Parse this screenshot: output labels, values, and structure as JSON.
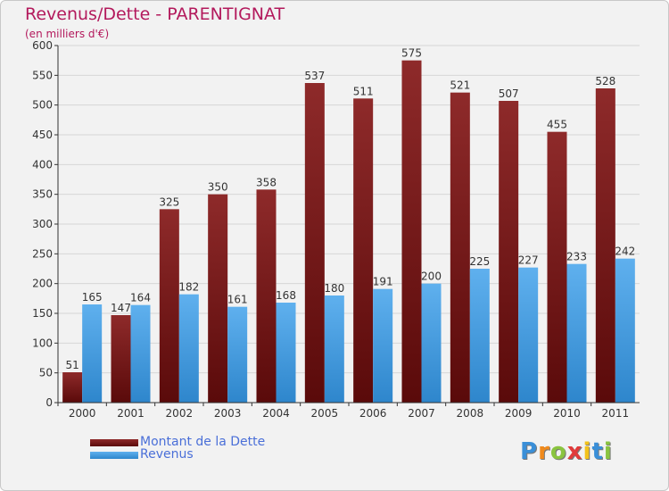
{
  "header": {
    "title": "Revenus/Dette - PARENTIGNAT",
    "subtitle": "(en milliers d'€)"
  },
  "chart_data": {
    "type": "bar",
    "categories": [
      "2000",
      "2001",
      "2002",
      "2003",
      "2004",
      "2005",
      "2006",
      "2007",
      "2008",
      "2009",
      "2010",
      "2011"
    ],
    "series": [
      {
        "name": "Montant de la Dette",
        "color": "#7a1a1a",
        "values": [
          51,
          147,
          325,
          350,
          358,
          537,
          511,
          575,
          521,
          507,
          455,
          528
        ]
      },
      {
        "name": "Revenus",
        "color": "#4da3e6",
        "values": [
          165,
          164,
          182,
          161,
          168,
          180,
          191,
          200,
          225,
          227,
          233,
          242
        ]
      }
    ],
    "ylim": [
      0,
      600
    ],
    "yticks": [
      0,
      50,
      100,
      150,
      200,
      250,
      300,
      350,
      400,
      450,
      500,
      550,
      600
    ],
    "grid": true,
    "legend_position": "bottom-left",
    "data_labels": true
  },
  "logo": {
    "letters": [
      "P",
      "r",
      "o",
      "x",
      "i",
      "t",
      "i"
    ],
    "colors": [
      "#3a8fd8",
      "#f08a1c",
      "#8ac43f",
      "#e03a3a",
      "#f3c21b",
      "#3a8fd8",
      "#8ac43f"
    ]
  }
}
